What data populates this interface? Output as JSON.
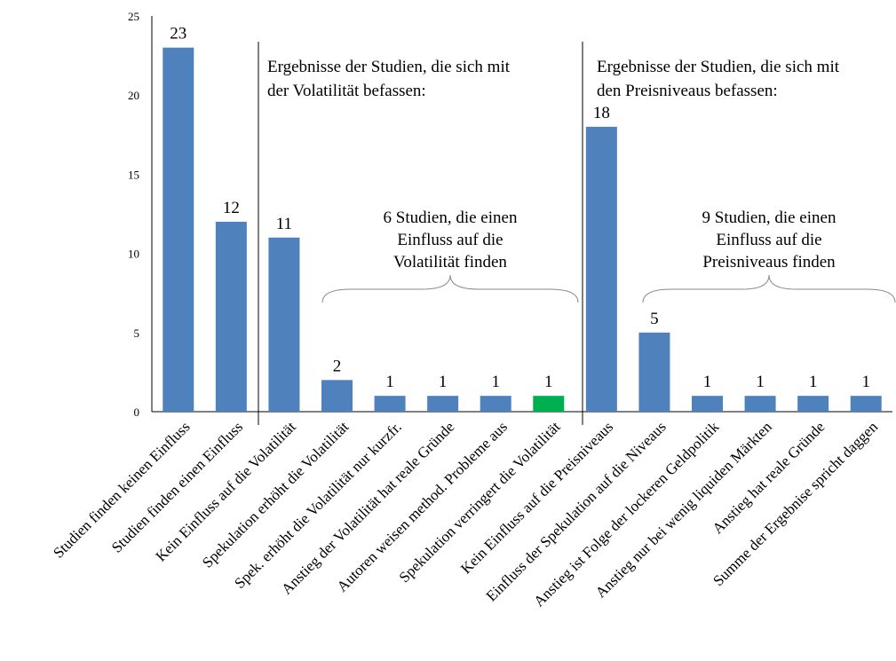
{
  "chart_data": {
    "type": "bar",
    "categories": [
      "Studien finden keinen Einfluss",
      "Studien finden einen Einfluss",
      "Kein Einfluss auf die Volatilität",
      "Spekulation erhöht die Volatilität",
      "Spek. erhöht die Volatilität nur kurzfr.",
      "Anstieg der Volatilität hat reale Gründe",
      "Autoren weisen method. Probleme aus",
      "Spekulation verringert die Volatilität",
      "Kein Einfluss auf die Preisniveaus",
      "Einfluss der Spekulation auf die Niveaus",
      "Anstieg ist Folge der lockeren Geldpolitik",
      "Anstieg nur bei wenig liquiden Märkten",
      "Anstieg hat reale Gründe",
      "Summe der Ergebnise spricht daggen"
    ],
    "values": [
      23,
      12,
      11,
      2,
      1,
      1,
      1,
      1,
      18,
      5,
      1,
      1,
      1,
      1
    ],
    "data_labels": [
      "23",
      "12",
      "11",
      "2",
      "1",
      "1",
      "1",
      "1",
      "18",
      "5",
      "1",
      "1",
      "1",
      "1"
    ],
    "bar_colors": [
      "#4F81BD",
      "#4F81BD",
      "#4F81BD",
      "#4F81BD",
      "#4F81BD",
      "#4F81BD",
      "#4F81BD",
      "#00B050",
      "#4F81BD",
      "#4F81BD",
      "#4F81BD",
      "#4F81BD",
      "#4F81BD",
      "#4F81BD"
    ],
    "yticks": [
      "0",
      "5",
      "10",
      "15",
      "20",
      "25"
    ],
    "ylim": [
      0,
      25
    ],
    "grid": false,
    "title": "",
    "xlabel": "",
    "ylabel": "",
    "annotations": {
      "volatility_header": [
        "Ergebnisse der Studien, die sich mit",
        "der Volatilität befassen:"
      ],
      "price_header": [
        "Ergebnisse der Studien, die sich mit",
        "den Preisniveaus befassen:"
      ],
      "volatility_brace": [
        "6 Studien, die einen",
        "Einfluss auf die",
        "Volatilität finden"
      ],
      "price_brace": [
        "9 Studien, die einen",
        "Einfluss auf die",
        "Preisniveaus finden"
      ]
    }
  },
  "colors": {
    "bar": "#4F81BD",
    "highlight": "#00B050",
    "axis": "#000000",
    "brace": "#888888"
  }
}
